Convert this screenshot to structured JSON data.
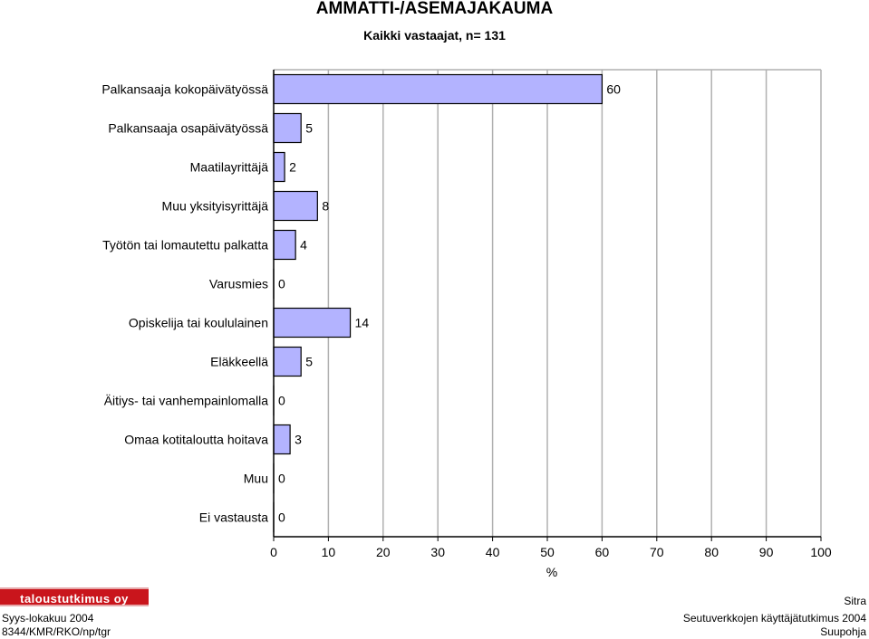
{
  "chart_data": {
    "type": "bar",
    "orientation": "horizontal",
    "title": "AMMATTI-/ASEMAJAKAUMA",
    "subtitle": "Kaikki vastaajat, n= 131",
    "categories": [
      "Palkansaaja kokopäivätyössä",
      "Palkansaaja osapäivätyössä",
      "Maatilayrittäjä",
      "Muu yksityisyrittäjä",
      "Työtön tai lomautettu palkatta",
      "Varusmies",
      "Opiskelija tai koululainen",
      "Eläkkeellä",
      "Äitiys- tai vanhempainlomalla",
      "Omaa kotitaloutta hoitava",
      "Muu",
      "Ei vastausta"
    ],
    "values": [
      60,
      5,
      2,
      8,
      4,
      0,
      14,
      5,
      0,
      3,
      0,
      0
    ],
    "value_labels": [
      "60",
      "5",
      "2",
      "8",
      "4",
      "0",
      "14",
      "5",
      "0",
      "3",
      "0",
      "0"
    ],
    "xlabel": "%",
    "xlim": [
      0,
      100
    ],
    "xticks": [
      "0",
      "10",
      "20",
      "30",
      "40",
      "50",
      "60",
      "70",
      "80",
      "90",
      "100"
    ],
    "grid": true,
    "bar_color": "#b3b3ff"
  },
  "footer": {
    "logo_text": "taloustutkimus oy",
    "date": "Syys-lokakuu 2004",
    "code": "8344/KMR/RKO/np/tgr",
    "org": "Sitra",
    "study": "Seutuverkkojen käyttäjätutkimus 2004",
    "region": "Suupohja"
  }
}
